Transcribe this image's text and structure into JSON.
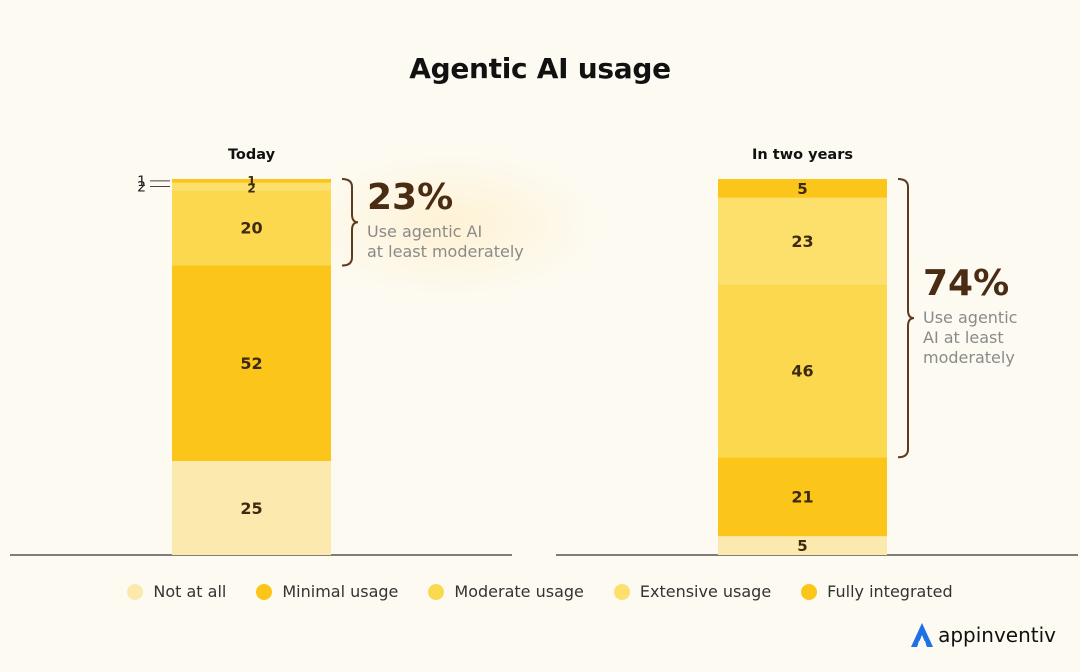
{
  "title": "Agentic AI usage",
  "colors": {
    "not_at_all": "#fbe9ae",
    "minimal": "#fcc519",
    "moderate": "#fcd84f",
    "extensive": "#fde06b",
    "fully": "#fcc519",
    "axis": "#333333",
    "bracket": "#5e3a20",
    "pct": "#4a2c14",
    "note": "#8a8a8a",
    "value_text": "#3d2a10"
  },
  "legend": [
    {
      "label": "Not at all",
      "color": "#fbe9ae"
    },
    {
      "label": "Minimal usage",
      "color": "#fcc519"
    },
    {
      "label": "Moderate usage",
      "color": "#fcd84f"
    },
    {
      "label": "Extensive usage",
      "color": "#fde06b"
    },
    {
      "label": "Fully integrated",
      "color": "#fcc519"
    }
  ],
  "chart_data": [
    {
      "type": "bar",
      "stacked": true,
      "category": "Today",
      "ylim": [
        0,
        100
      ],
      "segments": [
        {
          "series": "Not at all",
          "value": 25
        },
        {
          "series": "Minimal usage",
          "value": 52
        },
        {
          "series": "Moderate usage",
          "value": 20
        },
        {
          "series": "Extensive usage",
          "value": 2
        },
        {
          "series": "Fully integrated",
          "value": 1
        }
      ],
      "annotation": {
        "percent": "23%",
        "text_lines": [
          "Use agentic AI",
          "at least moderately"
        ]
      }
    },
    {
      "type": "bar",
      "stacked": true,
      "category": "In two years",
      "ylim": [
        0,
        100
      ],
      "segments": [
        {
          "series": "Not at all",
          "value": 5
        },
        {
          "series": "Minimal usage",
          "value": 21
        },
        {
          "series": "Moderate usage",
          "value": 46
        },
        {
          "series": "Extensive usage",
          "value": 23
        },
        {
          "series": "Fully integrated",
          "value": 5
        }
      ],
      "annotation": {
        "percent": "74%",
        "text_lines": [
          "Use agentic",
          "AI at least",
          "moderately"
        ]
      }
    }
  ],
  "logo_text": "appinventiv"
}
